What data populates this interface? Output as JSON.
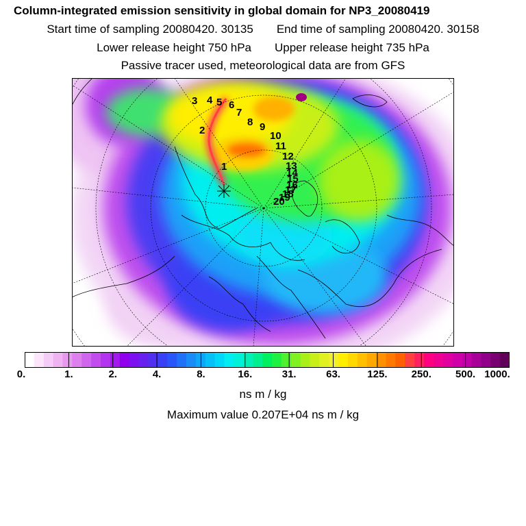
{
  "header": {
    "title": "Column-integrated emission sensitivity in global domain for NP3_20080419",
    "start_label": "Start time of sampling 20080420. 30135",
    "end_label": "End time of sampling 20080420. 30158",
    "lower_label": "Lower release height  750 hPa",
    "upper_label": "Upper release height  735 hPa",
    "tracer_note": "Passive tracer used, meteorological data are from GFS"
  },
  "map": {
    "projection": "polar stereographic, north pole",
    "track_labels": [
      "1",
      "2",
      "3",
      "4",
      "5",
      "6",
      "7",
      "8",
      "9",
      "10",
      "11",
      "12",
      "13",
      "14",
      "15",
      "16",
      "17",
      "18",
      "19",
      "20"
    ]
  },
  "legend": {
    "tick_labels": [
      "0.",
      "1.",
      "2.",
      "4.",
      "8.",
      "16.",
      "31.",
      "63.",
      "125.",
      "250.",
      "500.",
      "1000."
    ],
    "units": "ns m / kg",
    "colors": [
      "#ffffff",
      "#fbe6fb",
      "#f5ccf5",
      "#eeb3f0",
      "#e699ee",
      "#dd80ee",
      "#d066ee",
      "#c24cee",
      "#b333ee",
      "#a21aee",
      "#9000ee",
      "#7b10f0",
      "#6820f0",
      "#5030f0",
      "#3a40f5",
      "#2a55f8",
      "#2070f8",
      "#1a8cf8",
      "#10a6f8",
      "#08c0f8",
      "#00d8f8",
      "#00eef0",
      "#00f0d8",
      "#00f0b8",
      "#00f090",
      "#00f060",
      "#20f040",
      "#50f030",
      "#80f020",
      "#a8f018",
      "#c8f018",
      "#e0f020",
      "#f0f030",
      "#ffee00",
      "#ffd800",
      "#ffc000",
      "#ffa800",
      "#ff9000",
      "#ff7800",
      "#ff6000",
      "#ff4040",
      "#ff2060",
      "#ff0080",
      "#f00090",
      "#e000a0",
      "#d000a8",
      "#c000a8",
      "#a80098",
      "#900088",
      "#780070",
      "#600058"
    ],
    "max_value_text": "Maximum value  0.207E+04 ns m / kg"
  }
}
